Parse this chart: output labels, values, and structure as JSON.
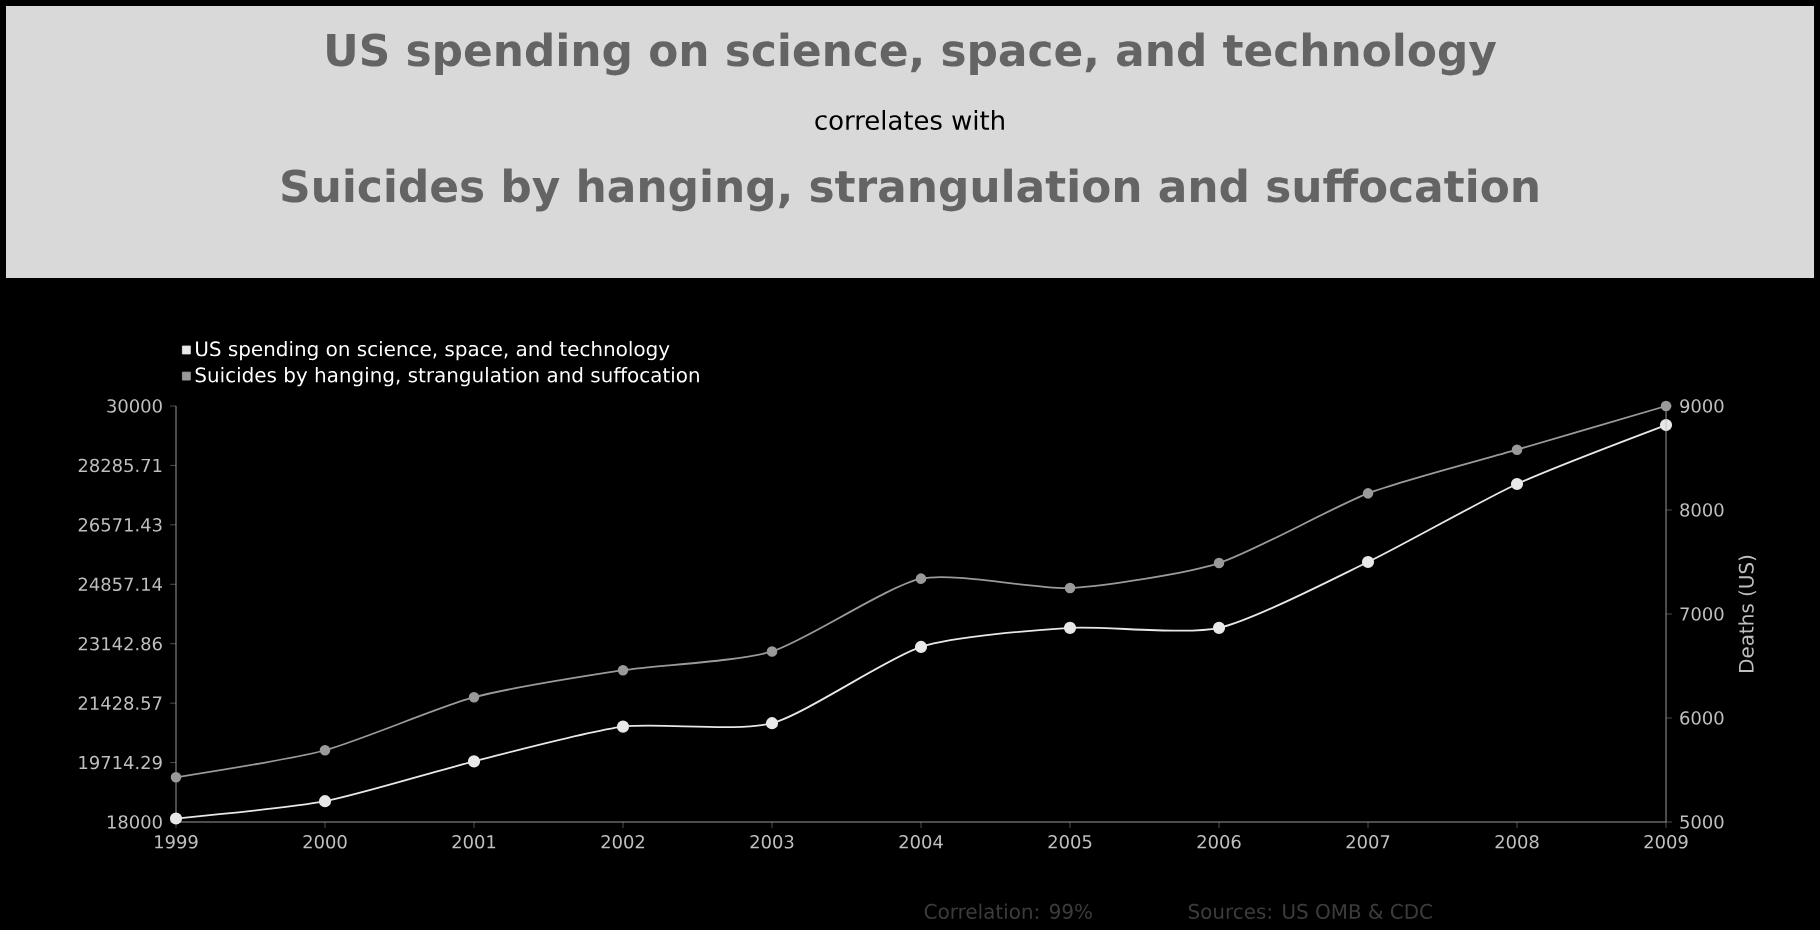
{
  "chart_data": {
    "type": "line",
    "title": "US spending on science, space, and technology",
    "subtitle": "correlates with",
    "annotations": [
      "Suicides by hanging, strangulation and suffocation",
      "Correlation: 99%",
      "Sources: US OMB & CDC"
    ],
    "x": [
      1999,
      2000,
      2001,
      2002,
      2003,
      2004,
      2005,
      2006,
      2007,
      2008,
      2009
    ],
    "series": [
      {
        "name": "US spending on science, space, and technology",
        "color": "#e8e8e8",
        "values": [
          18100,
          18600,
          19750,
          20750,
          20850,
          23050,
          23600,
          23600,
          25500,
          27750,
          29450
        ]
      },
      {
        "name": "Suicides by hanging, strangulation and suffocation",
        "color": "#9a9a9a",
        "axis": "y2",
        "values": [
          5430,
          5690,
          6200,
          6460,
          6640,
          7340,
          7250,
          7490,
          8160,
          8580,
          9000
        ]
      }
    ],
    "xlim": [
      1999,
      2009
    ],
    "xticks": [
      1999,
      2000,
      2001,
      2002,
      2003,
      2004,
      2005,
      2006,
      2007,
      2008,
      2009
    ],
    "ylim": [
      18000,
      30000
    ],
    "yticks": [
      18000,
      19714.29,
      21428.57,
      23142.86,
      24857.14,
      26571.43,
      28285.71,
      30000
    ],
    "y2lim": [
      5000,
      9000
    ],
    "y2ticks": [
      5000,
      6000,
      7000,
      8000,
      9000
    ],
    "y2label": "Deaths (US)",
    "legend": "top left",
    "grid": false,
    "marker": "circle",
    "line_style": "solid"
  }
}
